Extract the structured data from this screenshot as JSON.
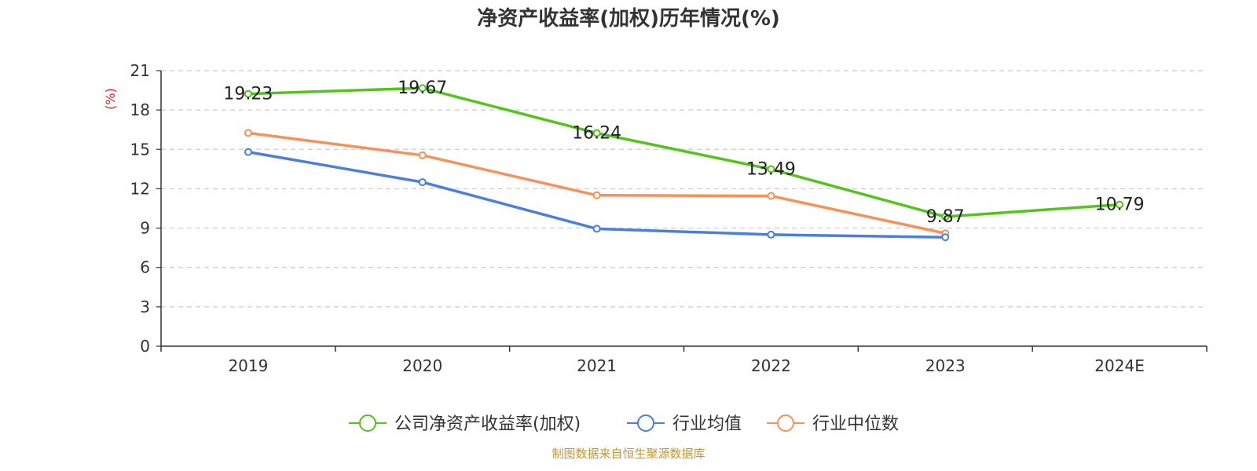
{
  "chart_data": {
    "type": "line",
    "title": "净资产收益率(加权)历年情况(%)",
    "ylabel": "(%)",
    "xlabel": "",
    "categories": [
      "2019",
      "2020",
      "2021",
      "2022",
      "2023",
      "2024E"
    ],
    "ylim": [
      0,
      21
    ],
    "yticks": [
      0,
      3,
      6,
      9,
      12,
      15,
      18,
      21
    ],
    "grid": true,
    "legend_position": "bottom-center",
    "series": [
      {
        "name": "公司净资产收益率(加权)",
        "color": "#52c41a",
        "values": [
          19.23,
          19.67,
          16.24,
          13.49,
          9.87,
          10.79
        ],
        "labels": [
          "19.23",
          "19.67",
          "16.24",
          "13.49",
          "9.87",
          "10.79"
        ]
      },
      {
        "name": "行业均值",
        "color": "#4a7fdc",
        "values": [
          14.8,
          12.5,
          8.95,
          8.5,
          8.3,
          null
        ]
      },
      {
        "name": "行业中位数",
        "color": "#f7915a",
        "values": [
          16.25,
          14.55,
          11.5,
          11.45,
          8.6,
          null
        ]
      }
    ]
  },
  "footer": "制图数据来自恒生聚源数据库"
}
